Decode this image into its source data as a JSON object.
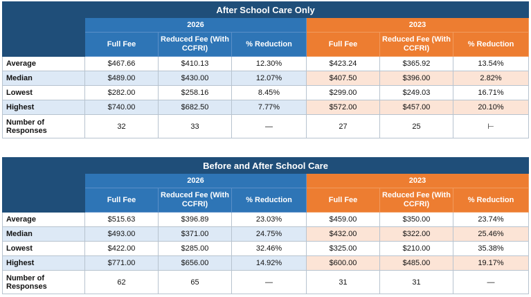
{
  "tables": [
    {
      "title": "After School Care Only",
      "years": [
        "2026",
        "2023"
      ],
      "columns": [
        "Full Fee",
        "Reduced Fee (With CCFRI)",
        "% Reduction",
        "Full Fee",
        "Reduced Fee (With CCFRI)",
        "% Reduction"
      ],
      "rows": [
        {
          "label": "Average",
          "values": [
            "$467.66",
            "$410.13",
            "12.30%",
            "$423.24",
            "$365.92",
            "13.54%"
          ]
        },
        {
          "label": "Median",
          "values": [
            "$489.00",
            "$430.00",
            "12.07%",
            "$407.50",
            "$396.00",
            "2.82%"
          ]
        },
        {
          "label": "Lowest",
          "values": [
            "$282.00",
            "$258.16",
            "8.45%",
            "$299.00",
            "$249.03",
            "16.71%"
          ]
        },
        {
          "label": "Highest",
          "values": [
            "$740.00",
            "$682.50",
            "7.77%",
            "$572.00",
            "$457.00",
            "20.10%"
          ]
        },
        {
          "label": "Number of Responses",
          "values": [
            "32",
            "33",
            "—",
            "27",
            "25",
            "⊢"
          ]
        }
      ]
    },
    {
      "title": "Before and After School Care",
      "years": [
        "2026",
        "2023"
      ],
      "columns": [
        "Full Fee",
        "Reduced Fee (With CCFRI)",
        "% Reduction",
        "Full Fee",
        "Reduced Fee (With CCFRI)",
        "% Reduction"
      ],
      "rows": [
        {
          "label": "Average",
          "values": [
            "$515.63",
            "$396.89",
            "23.03%",
            "$459.00",
            "$350.00",
            "23.74%"
          ]
        },
        {
          "label": "Median",
          "values": [
            "$493.00",
            "$371.00",
            "24.75%",
            "$432.00",
            "$322.00",
            "25.46%"
          ]
        },
        {
          "label": "Lowest",
          "values": [
            "$422.00",
            "$285.00",
            "32.46%",
            "$325.00",
            "$210.00",
            "35.38%"
          ]
        },
        {
          "label": "Highest",
          "values": [
            "$771.00",
            "$656.00",
            "14.92%",
            "$600.00",
            "$485.00",
            "19.17%"
          ]
        },
        {
          "label": "Number of Responses",
          "values": [
            "62",
            "65",
            "—",
            "31",
            "31",
            "—"
          ]
        }
      ]
    }
  ],
  "colors": {
    "title": "#1f4e79",
    "blue": "#2e75b6",
    "orange": "#ed7d31",
    "blue_shade": "#dde9f6",
    "orange_shade": "#fce4d6"
  }
}
